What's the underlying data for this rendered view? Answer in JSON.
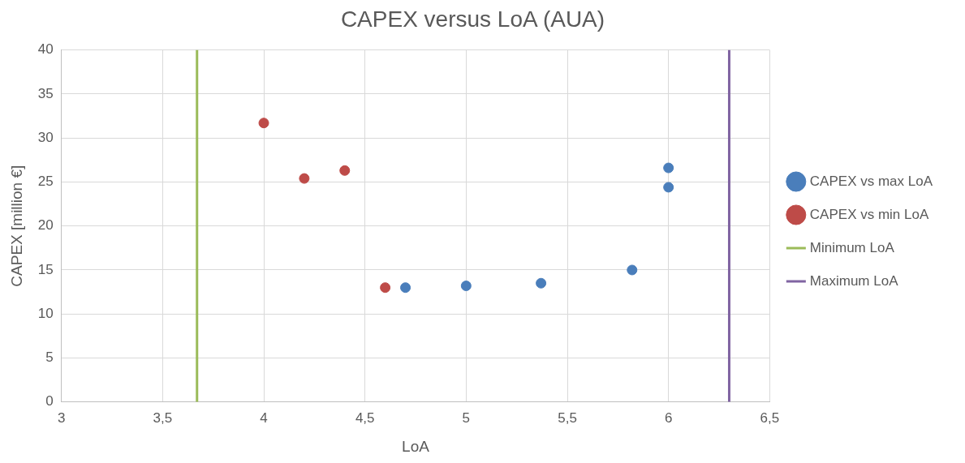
{
  "chart_data": {
    "type": "scatter",
    "title": "CAPEX versus LoA (AUA)",
    "xlabel": "LoA",
    "ylabel": "CAPEX [million €]",
    "xlim": [
      3,
      6.5
    ],
    "xticks": [
      3,
      {
        "value": 3.5,
        "label": "3,5"
      },
      4,
      {
        "value": 4.5,
        "label": "4,5"
      },
      5,
      {
        "value": 5.5,
        "label": "5,5"
      },
      6,
      {
        "value": 6.5,
        "label": "6,5"
      }
    ],
    "ylim": [
      0,
      40
    ],
    "yticks": [
      0,
      5,
      10,
      15,
      20,
      25,
      30,
      35,
      40
    ],
    "grid": true,
    "legend": "right",
    "marker": "circle",
    "series": [
      {
        "name": "CAPEX vs max LoA",
        "color": "#4a7ebb",
        "x": [
          4.7,
          5.0,
          5.37,
          5.82,
          6.0,
          6.0
        ],
        "values": [
          13.0,
          13.2,
          13.5,
          15.0,
          26.6,
          24.4
        ]
      },
      {
        "name": "CAPEX vs min LoA",
        "color": "#be4b48",
        "x": [
          4.0,
          4.2,
          4.4,
          4.6
        ],
        "values": [
          31.7,
          25.4,
          26.3,
          13.0
        ]
      },
      {
        "name": "Minimum LoA",
        "type": "line",
        "marker": "none",
        "color": "#9bbb59",
        "x": [
          3.67,
          3.67
        ],
        "values": [
          0,
          40
        ]
      },
      {
        "name": "Maximum LoA",
        "type": "line",
        "marker": "none",
        "color": "#8064a2",
        "x": [
          6.3,
          6.3
        ],
        "values": [
          0,
          40
        ]
      }
    ]
  }
}
